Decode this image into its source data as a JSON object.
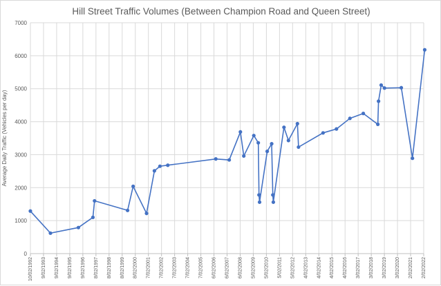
{
  "chart_data": {
    "type": "line",
    "title": "Hill Street Traffic Volumes (Between Champion Road and Queen Street)",
    "ylabel": "Average Daily Traffic (Vehicles per day)",
    "xlabel": "",
    "ylim": [
      0,
      7000
    ],
    "yticks": [
      0,
      1000,
      2000,
      3000,
      4000,
      5000,
      6000,
      7000
    ],
    "xlim": [
      "1992-10-02",
      "2022-02-02"
    ],
    "xtick_labels": [
      "10/02/1992",
      "9/02/1993",
      "9/02/1994",
      "9/02/1995",
      "9/02/1996",
      "8/02/1997",
      "8/02/1998",
      "8/02/1999",
      "8/02/2000",
      "7/02/2001",
      "7/02/2002",
      "7/02/2003",
      "7/02/2004",
      "7/02/2005",
      "6/02/2006",
      "6/02/2007",
      "6/02/2008",
      "5/02/2009",
      "5/02/2010",
      "5/02/2011",
      "5/02/2012",
      "4/02/2013",
      "4/02/2014",
      "4/02/2015",
      "4/02/2016",
      "3/02/2017",
      "3/02/2018",
      "3/02/2019",
      "3/02/2020",
      "2/02/2021",
      "2/02/2022"
    ],
    "grid": true,
    "legend": "none",
    "series_color": "#4472c4",
    "points": [
      {
        "x": "1992-10-01",
        "y": 1290
      },
      {
        "x": "1994-04-01",
        "y": 620
      },
      {
        "x": "1996-05-01",
        "y": 790
      },
      {
        "x": "1997-06-01",
        "y": 1100
      },
      {
        "x": "1997-07-15",
        "y": 1600
      },
      {
        "x": "2000-01-01",
        "y": 1310
      },
      {
        "x": "2000-06-01",
        "y": 2040
      },
      {
        "x": "2001-06-01",
        "y": 1220
      },
      {
        "x": "2002-01-01",
        "y": 2510
      },
      {
        "x": "2002-06-01",
        "y": 2650
      },
      {
        "x": "2003-01-01",
        "y": 2680
      },
      {
        "x": "2006-08-01",
        "y": 2870
      },
      {
        "x": "2007-08-01",
        "y": 2840
      },
      {
        "x": "2008-06-01",
        "y": 3690
      },
      {
        "x": "2008-09-01",
        "y": 2960
      },
      {
        "x": "2009-06-01",
        "y": 3580
      },
      {
        "x": "2009-10-01",
        "y": 3360
      },
      {
        "x": "2009-10-20",
        "y": 1780
      },
      {
        "x": "2009-11-05",
        "y": 1560
      },
      {
        "x": "2010-06-01",
        "y": 3100
      },
      {
        "x": "2010-10-01",
        "y": 3330
      },
      {
        "x": "2010-11-01",
        "y": 1780
      },
      {
        "x": "2010-11-15",
        "y": 1560
      },
      {
        "x": "2011-09-01",
        "y": 3830
      },
      {
        "x": "2012-01-01",
        "y": 3430
      },
      {
        "x": "2012-09-01",
        "y": 3940
      },
      {
        "x": "2012-10-01",
        "y": 3230
      },
      {
        "x": "2014-08-01",
        "y": 3660
      },
      {
        "x": "2015-08-01",
        "y": 3780
      },
      {
        "x": "2016-08-01",
        "y": 4100
      },
      {
        "x": "2017-08-01",
        "y": 4250
      },
      {
        "x": "2018-09-01",
        "y": 3920
      },
      {
        "x": "2018-09-20",
        "y": 4620
      },
      {
        "x": "2018-12-01",
        "y": 5110
      },
      {
        "x": "2019-03-01",
        "y": 5020
      },
      {
        "x": "2020-06-01",
        "y": 5030
      },
      {
        "x": "2021-04-01",
        "y": 2890
      },
      {
        "x": "2022-03-01",
        "y": 6180
      }
    ]
  }
}
